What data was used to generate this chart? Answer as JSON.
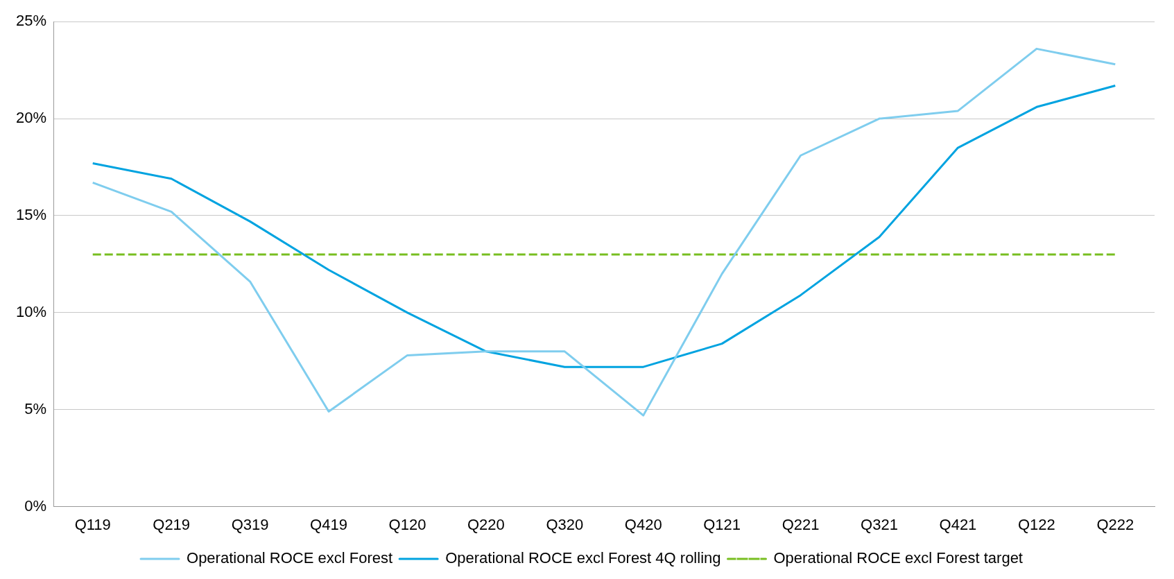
{
  "chart_data": {
    "type": "line",
    "categories": [
      "Q119",
      "Q219",
      "Q319",
      "Q419",
      "Q120",
      "Q220",
      "Q320",
      "Q420",
      "Q121",
      "Q221",
      "Q321",
      "Q421",
      "Q122",
      "Q222"
    ],
    "series": [
      {
        "name": "Operational ROCE excl Forest",
        "color": "#7fcdee",
        "line_style": "solid",
        "values": [
          16.7,
          15.2,
          11.6,
          4.9,
          7.8,
          8.0,
          8.0,
          4.7,
          12.0,
          18.1,
          20.0,
          20.4,
          23.6,
          22.8
        ]
      },
      {
        "name": "Operational ROCE excl Forest 4Q rolling",
        "color": "#00a3e0",
        "line_style": "solid",
        "values": [
          17.7,
          16.9,
          14.7,
          12.2,
          10.0,
          8.0,
          7.2,
          7.2,
          8.4,
          10.9,
          13.9,
          18.5,
          20.6,
          21.7
        ]
      },
      {
        "name": "Operational ROCE excl Forest target",
        "color": "#78be20",
        "line_style": "dashed",
        "values": [
          13,
          13,
          13,
          13,
          13,
          13,
          13,
          13,
          13,
          13,
          13,
          13,
          13,
          13
        ]
      }
    ],
    "ylim": [
      0,
      25
    ],
    "yticks": [
      {
        "value": 0,
        "label": "0%"
      },
      {
        "value": 5,
        "label": "5%"
      },
      {
        "value": 10,
        "label": "10%"
      },
      {
        "value": 15,
        "label": "15%"
      },
      {
        "value": 20,
        "label": "20%"
      },
      {
        "value": 25,
        "label": "25%"
      }
    ],
    "grid": "y",
    "legend": "bottom",
    "marker": "none"
  }
}
